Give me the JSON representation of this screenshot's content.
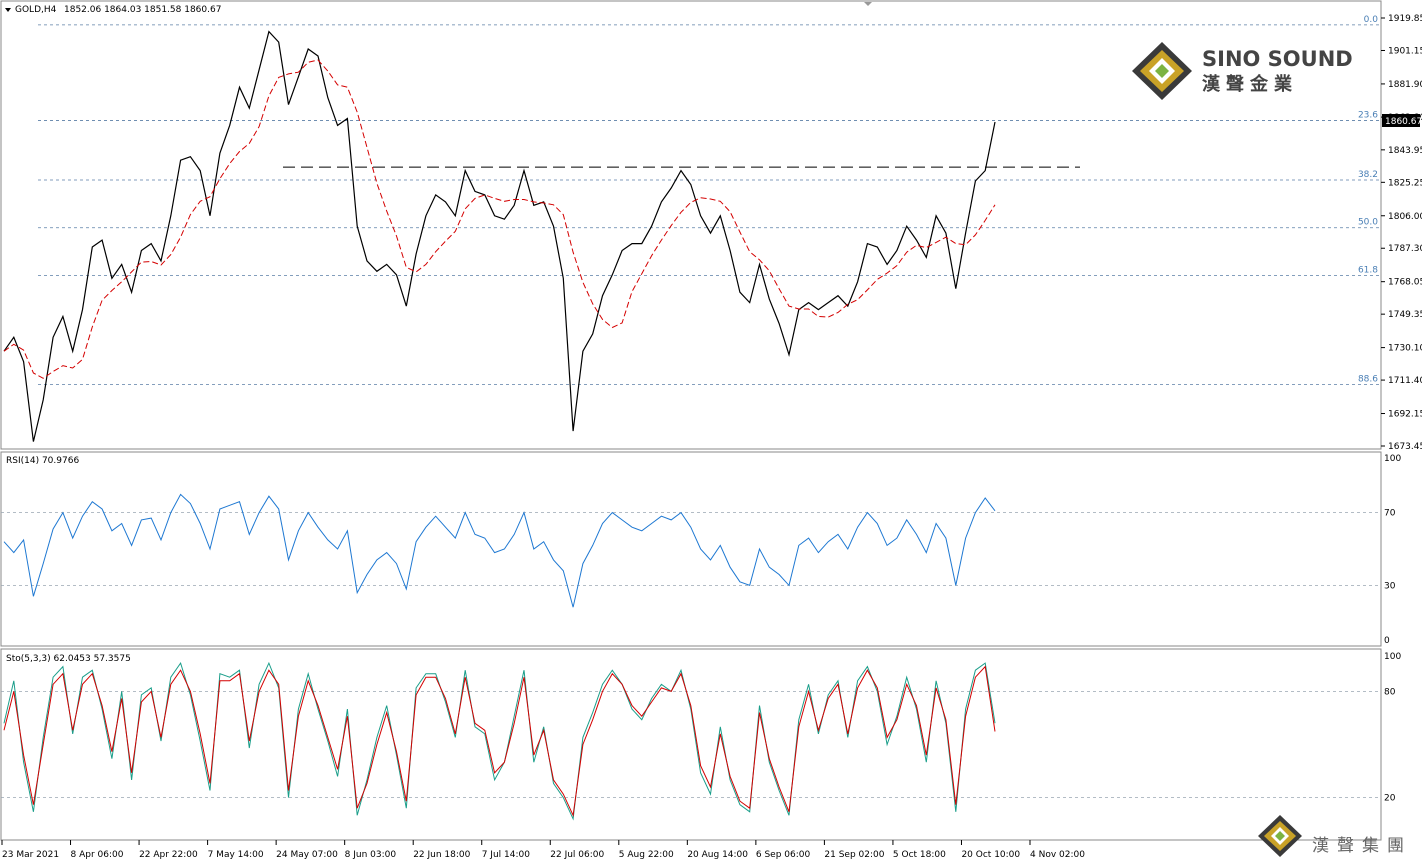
{
  "main": {
    "symbol": "GOLD,H4",
    "ohlc": "1852.06 1864.03 1851.58 1860.67",
    "current_price": "1860.67",
    "y_ticks": [
      "1919.85",
      "1901.15",
      "1881.90",
      "1862.80",
      "1843.95",
      "1825.25",
      "1806.00",
      "1787.30",
      "1768.05",
      "1749.35",
      "1730.10",
      "1711.40",
      "1692.15",
      "1673.45"
    ],
    "fib_levels": [
      {
        "label": "0.0",
        "price": 1915.9
      },
      {
        "label": "23.6",
        "price": 1860.8
      },
      {
        "label": "38.2",
        "price": 1826.6
      },
      {
        "label": "50.0",
        "price": 1799.1
      },
      {
        "label": "61.8",
        "price": 1771.6
      },
      {
        "label": "88.6",
        "price": 1708.8
      }
    ],
    "resistance_price": 1834.0
  },
  "x_ticks": [
    "23 Mar 2021",
    "8 Apr 06:00",
    "22 Apr 22:00",
    "7 May 14:00",
    "24 May 07:00",
    "8 Jun 03:00",
    "22 Jun 18:00",
    "7 Jul 14:00",
    "22 Jul 06:00",
    "5 Aug 22:00",
    "20 Aug 14:00",
    "6 Sep 06:00",
    "21 Sep 02:00",
    "5 Oct 18:00",
    "20 Oct 10:00",
    "4 Nov 02:00"
  ],
  "rsi": {
    "label": "RSI(14) 70.9766",
    "y_ticks": [
      "100",
      "70",
      "30",
      "0"
    ]
  },
  "stoch": {
    "label": "Sto(5,3,3) 62.0453 57.3575",
    "y_ticks": [
      "100",
      "80",
      "20"
    ]
  },
  "logo": {
    "name": "SINO SOUND",
    "chinese": "漢聲金業"
  },
  "watermark": {
    "chinese": "漢聲集團"
  },
  "colors": {
    "price": "#000000",
    "ma": "#d40000",
    "rsi": "#1e78d2",
    "stoch_main": "#1a9e8a",
    "stoch_signal": "#d40000",
    "grid": "#b8c4d0",
    "fibo": "#4a7fb5"
  },
  "chart_data": [
    {
      "type": "line",
      "title": "GOLD,H4",
      "series": [
        {
          "name": "GOLD",
          "values": [
            1728,
            1736,
            1722,
            1676,
            1700,
            1736,
            1748,
            1728,
            1752,
            1788,
            1792,
            1770,
            1778,
            1762,
            1786,
            1790,
            1780,
            1806,
            1838,
            1840,
            1832,
            1806,
            1842,
            1858,
            1880,
            1868,
            1890,
            1912,
            1906,
            1870,
            1886,
            1902,
            1898,
            1874,
            1858,
            1862,
            1800,
            1780,
            1774,
            1778,
            1772,
            1754,
            1784,
            1806,
            1818,
            1814,
            1806,
            1832,
            1820,
            1818,
            1806,
            1804,
            1812,
            1832,
            1812,
            1814,
            1800,
            1770,
            1682,
            1728,
            1738,
            1760,
            1772,
            1786,
            1790,
            1790,
            1800,
            1814,
            1822,
            1832,
            1824,
            1806,
            1796,
            1806,
            1786,
            1762,
            1756,
            1778,
            1758,
            1744,
            1726,
            1752,
            1756,
            1752,
            1756,
            1760,
            1754,
            1768,
            1790,
            1788,
            1778,
            1786,
            1800,
            1792,
            1782,
            1806,
            1796,
            1764,
            1796,
            1826,
            1832,
            1860
          ]
        }
      ]
    },
    {
      "type": "line",
      "series": [
        {
          "name": "RSI(14)",
          "values": [
            54,
            48,
            55,
            24,
            42,
            61,
            70,
            56,
            68,
            76,
            72,
            60,
            64,
            52,
            66,
            67,
            55,
            70,
            80,
            75,
            64,
            50,
            72,
            74,
            76,
            58,
            70,
            79,
            72,
            44,
            60,
            70,
            62,
            55,
            50,
            60,
            26,
            36,
            44,
            48,
            42,
            28,
            54,
            62,
            68,
            62,
            56,
            70,
            58,
            56,
            48,
            50,
            58,
            70,
            50,
            54,
            44,
            38,
            18,
            42,
            52,
            64,
            70,
            66,
            62,
            60,
            64,
            68,
            66,
            70,
            62,
            50,
            44,
            52,
            40,
            32,
            30,
            50,
            40,
            36,
            30,
            52,
            56,
            48,
            54,
            58,
            50,
            62,
            70,
            64,
            52,
            56,
            66,
            58,
            48,
            64,
            56,
            30,
            56,
            70,
            78,
            70.98
          ]
        }
      ]
    },
    {
      "type": "line",
      "series": [
        {
          "name": "Sto main",
          "values": [
            62,
            86,
            40,
            12,
            54,
            88,
            94,
            56,
            88,
            92,
            70,
            42,
            80,
            30,
            78,
            82,
            52,
            88,
            96,
            78,
            52,
            24,
            90,
            88,
            92,
            48,
            84,
            96,
            82,
            20,
            70,
            90,
            70,
            52,
            32,
            70,
            10,
            30,
            54,
            72,
            44,
            14,
            82,
            90,
            90,
            74,
            54,
            92,
            60,
            56,
            30,
            40,
            66,
            92,
            40,
            60,
            28,
            20,
            8,
            54,
            68,
            84,
            92,
            84,
            70,
            64,
            76,
            84,
            80,
            92,
            70,
            34,
            22,
            60,
            30,
            16,
            12,
            72,
            40,
            24,
            10,
            64,
            84,
            56,
            78,
            86,
            54,
            86,
            94,
            80,
            50,
            66,
            88,
            70,
            40,
            86,
            62,
            12,
            70,
            92,
            96,
            62.05
          ]
        },
        {
          "name": "Sto signal",
          "values": [
            58,
            80,
            44,
            16,
            50,
            84,
            90,
            58,
            84,
            90,
            72,
            46,
            76,
            34,
            74,
            80,
            54,
            84,
            92,
            80,
            56,
            28,
            86,
            86,
            90,
            52,
            80,
            92,
            84,
            24,
            66,
            86,
            72,
            54,
            36,
            66,
            14,
            28,
            50,
            68,
            46,
            18,
            78,
            88,
            88,
            76,
            56,
            88,
            62,
            58,
            34,
            40,
            62,
            88,
            44,
            58,
            30,
            22,
            10,
            50,
            64,
            80,
            90,
            84,
            72,
            66,
            74,
            82,
            80,
            90,
            72,
            38,
            26,
            56,
            32,
            18,
            14,
            68,
            42,
            26,
            12,
            60,
            80,
            58,
            76,
            84,
            56,
            82,
            92,
            82,
            54,
            64,
            84,
            72,
            44,
            82,
            64,
            16,
            66,
            88,
            94,
            57.36
          ]
        }
      ]
    }
  ]
}
